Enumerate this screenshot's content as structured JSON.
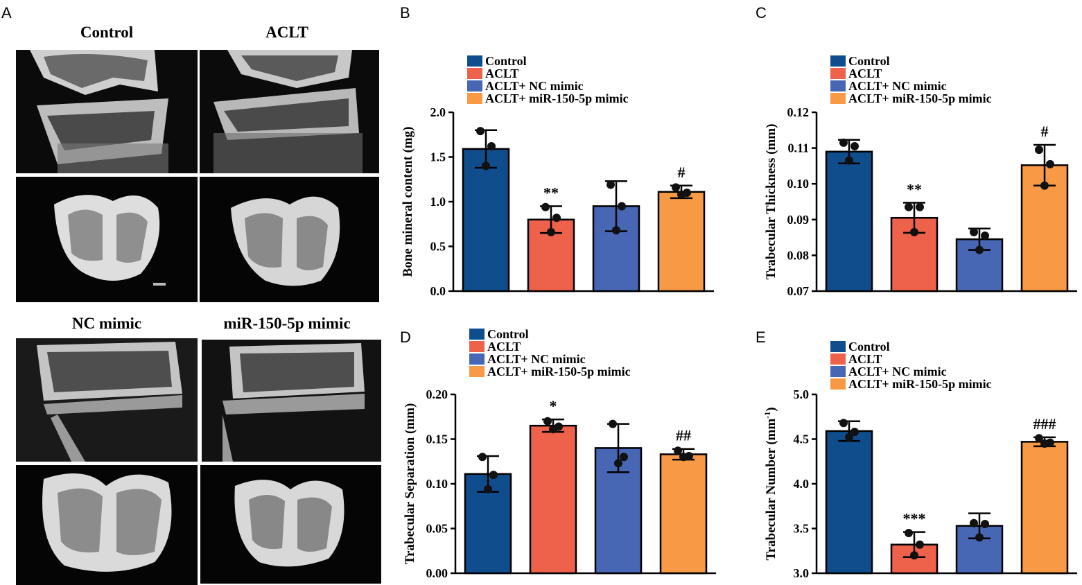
{
  "panel_a": {
    "label": "A",
    "titles": [
      "Control",
      "ACLT",
      "NC mimic",
      "miR-150-5p mimic"
    ],
    "image_descriptions": [
      "Control knee micro-CT sagittal section",
      "Control tibial plateau 3D reconstruction",
      "ACLT knee micro-CT sagittal section",
      "ACLT tibial plateau 3D reconstruction",
      "NC mimic knee micro-CT sagittal section",
      "NC mimic tibial plateau 3D reconstruction",
      "miR-150-5p mimic knee micro-CT sagittal section",
      "miR-150-5p mimic tibial plateau 3D reconstruction"
    ]
  },
  "colors": {
    "Control": "#0f4d8c",
    "ACLT": "#ee614a",
    "ACLT+ NC mimic": "#4766b3",
    "ACLT+ miR-150-5p mimic": "#f89a45"
  },
  "chart_data": [
    {
      "panel": "B",
      "type": "bar",
      "ylabel": "Bone mineral content (mg)",
      "ylim": [
        0,
        2.0
      ],
      "yticks": [
        "0.0",
        "0.5",
        "1.0",
        "1.5",
        "2.0"
      ],
      "ytick_values": [
        0,
        0.5,
        1.0,
        1.5,
        2.0
      ],
      "legend": [
        "Control",
        "ACLT",
        "ACLT+ NC mimic",
        "ACLT+ miR-150-5p mimic"
      ],
      "values": [
        1.59,
        0.8,
        0.95,
        1.11
      ],
      "errors": [
        0.21,
        0.15,
        0.28,
        0.07
      ],
      "points": [
        [
          1.79,
          1.62,
          1.4
        ],
        [
          0.94,
          0.82,
          0.66
        ],
        [
          1.19,
          0.95,
          0.68
        ],
        [
          1.16,
          1.1,
          1.08
        ]
      ],
      "annotations": [
        "",
        "**",
        "",
        "#"
      ]
    },
    {
      "panel": "C",
      "type": "bar",
      "ylabel": "Trabecular Thickness (mm)",
      "ylim": [
        0.07,
        0.12
      ],
      "yticks": [
        "0.07",
        "0.08",
        "0.09",
        "0.10",
        "0.11",
        "0.12"
      ],
      "ytick_values": [
        0.07,
        0.08,
        0.09,
        0.1,
        0.11,
        0.12
      ],
      "legend": [
        "Control",
        "ACLT",
        "ACLT+ NC mimic",
        "ACLT+ miR-150-5p mimic"
      ],
      "values": [
        0.109,
        0.0905,
        0.0845,
        0.1052
      ],
      "errors": [
        0.0033,
        0.0042,
        0.003,
        0.0057
      ],
      "points": [
        [
          0.1115,
          0.1105,
          0.1065
        ],
        [
          0.0935,
          0.0935,
          0.0865
        ],
        [
          0.0865,
          0.0855,
          0.0815
        ],
        [
          0.1095,
          0.1055,
          0.0995
        ]
      ],
      "annotations": [
        "",
        "**",
        "",
        "#"
      ]
    },
    {
      "panel": "D",
      "type": "bar",
      "ylabel": "Trabecular Separation (mm)",
      "ylim": [
        0,
        0.2
      ],
      "yticks": [
        "0.00",
        "0.05",
        "0.10",
        "0.15",
        "0.20"
      ],
      "ytick_values": [
        0,
        0.05,
        0.1,
        0.15,
        0.2
      ],
      "legend": [
        "Control",
        "ACLT",
        "ACLT+ NC mimic",
        "ACLT+ miR-150-5p mimic"
      ],
      "values": [
        0.111,
        0.165,
        0.14,
        0.133
      ],
      "errors": [
        0.02,
        0.007,
        0.027,
        0.006
      ],
      "points": [
        [
          0.13,
          0.11,
          0.094
        ],
        [
          0.17,
          0.164,
          0.161
        ],
        [
          0.167,
          0.13,
          0.123
        ],
        [
          0.137,
          0.131,
          0.13
        ]
      ],
      "annotations": [
        "",
        "*",
        "",
        "##"
      ]
    },
    {
      "panel": "E",
      "type": "bar",
      "ylabel": "Trabecular Number (mm",
      "ylabel_sup": "-1",
      "ylabel_end": ")",
      "ylim": [
        3.0,
        5.0
      ],
      "yticks": [
        "3.0",
        "3.5",
        "4.0",
        "4.5",
        "5.0"
      ],
      "ytick_values": [
        3.0,
        3.5,
        4.0,
        4.5,
        5.0
      ],
      "legend": [
        "Control",
        "ACLT",
        "ACLT+ NC mimic",
        "ACLT+ miR-150-5p mimic"
      ],
      "values": [
        4.59,
        3.32,
        3.53,
        4.47
      ],
      "errors": [
        0.11,
        0.14,
        0.14,
        0.05
      ],
      "points": [
        [
          4.68,
          4.58,
          4.52
        ],
        [
          3.45,
          3.32,
          3.2
        ],
        [
          3.56,
          3.55,
          3.4
        ],
        [
          4.51,
          4.46,
          4.45
        ]
      ],
      "annotations": [
        "",
        "***",
        "",
        "###"
      ]
    }
  ]
}
